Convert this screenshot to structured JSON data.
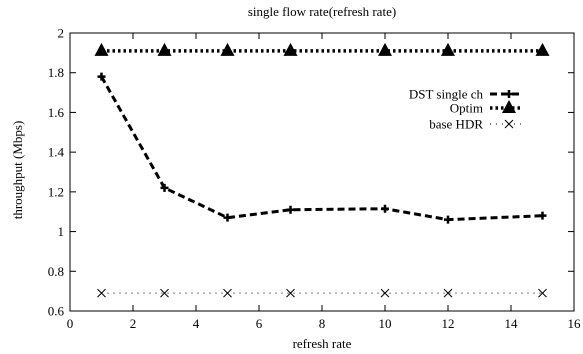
{
  "chart_data": {
    "type": "line",
    "title": "single flow rate(refresh rate)",
    "xlabel": "refresh rate",
    "ylabel": "throughput (Mbps)",
    "xlim": [
      0,
      16
    ],
    "ylim": [
      0.6,
      2
    ],
    "xticks": [
      0,
      2,
      4,
      6,
      8,
      10,
      12,
      14,
      16
    ],
    "yticks": [
      0.6,
      0.8,
      1,
      1.2,
      1.4,
      1.6,
      1.8,
      2
    ],
    "xtick_labels": [
      "0",
      "2",
      "4",
      "6",
      "8",
      "10",
      "12",
      "14",
      "16"
    ],
    "ytick_labels": [
      "0.6",
      "0.8",
      "1",
      "1.2",
      "1.4",
      "1.6",
      "1.8",
      "2"
    ],
    "grid": false,
    "legend_position": "top-right",
    "x": [
      1,
      3,
      5,
      7,
      10,
      12,
      15
    ],
    "series": [
      {
        "name": "DST single ch",
        "values": [
          1.78,
          1.22,
          1.07,
          1.11,
          1.115,
          1.06,
          1.08
        ],
        "marker": "plus",
        "line": "dashed-thick"
      },
      {
        "name": "Optim",
        "values": [
          1.91,
          1.91,
          1.91,
          1.91,
          1.91,
          1.91,
          1.91
        ],
        "marker": "triangle",
        "line": "dotted-thick"
      },
      {
        "name": "base HDR",
        "values": [
          0.69,
          0.69,
          0.69,
          0.69,
          0.69,
          0.69,
          0.69
        ],
        "marker": "cross",
        "line": "dotted-thin"
      }
    ]
  }
}
